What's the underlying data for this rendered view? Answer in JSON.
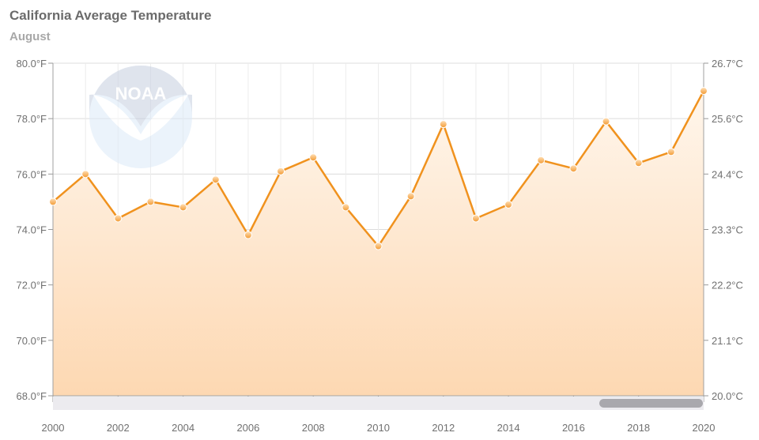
{
  "chart_data": {
    "type": "line",
    "title": "California Average Temperature",
    "subtitle": "August",
    "x": [
      2000,
      2001,
      2002,
      2003,
      2004,
      2005,
      2006,
      2007,
      2008,
      2009,
      2010,
      2011,
      2012,
      2013,
      2014,
      2015,
      2016,
      2017,
      2018,
      2019,
      2020
    ],
    "series": [
      {
        "values": [
          75.0,
          76.0,
          74.4,
          75.0,
          74.8,
          75.8,
          73.8,
          76.1,
          76.6,
          74.8,
          73.4,
          75.2,
          77.8,
          74.4,
          74.9,
          76.5,
          76.2,
          77.9,
          76.4,
          76.8,
          79.0
        ]
      }
    ],
    "ylim": [
      68,
      80
    ],
    "y_ticks_left": [
      "68.0°F",
      "70.0°F",
      "72.0°F",
      "74.0°F",
      "76.0°F",
      "78.0°F",
      "80.0°F"
    ],
    "y_ticks_right": [
      "20.0°C",
      "21.1°C",
      "22.2°C",
      "23.3°C",
      "24.4°C",
      "25.6°C",
      "26.7°C"
    ],
    "x_ticks": [
      "2000",
      "2002",
      "2004",
      "2006",
      "2008",
      "2010",
      "2012",
      "2014",
      "2016",
      "2018",
      "2020"
    ],
    "grid": true,
    "fill": "area gradient under line",
    "colors": {
      "line": "#f0921e",
      "marker": "#f6b15c",
      "fill_top": "#fff3e6",
      "fill_bottom": "#fdd9b5",
      "grid": "#dddddd",
      "axis": "#999999"
    },
    "watermark": "NOAA"
  }
}
